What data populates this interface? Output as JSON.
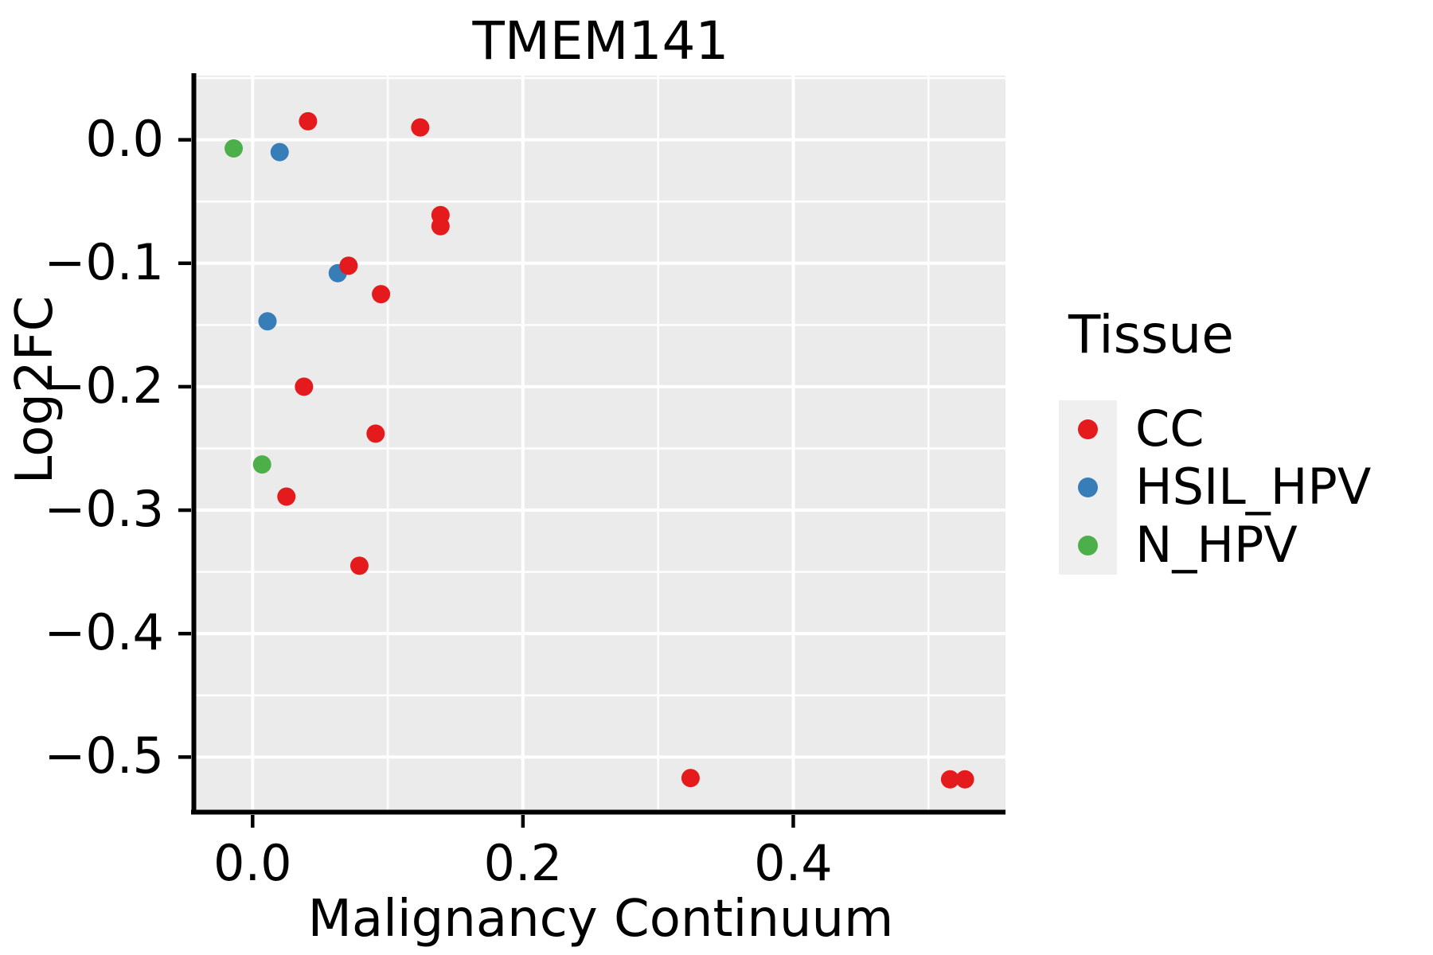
{
  "title": "TMEM141",
  "axes": {
    "x_label": "Malignancy Continuum",
    "y_label": "Log2FC",
    "x_ticks": [
      {
        "value": 0.0,
        "label": "0.0"
      },
      {
        "value": 0.2,
        "label": "0.2"
      },
      {
        "value": 0.4,
        "label": "0.4"
      }
    ],
    "y_ticks": [
      {
        "value": 0.0,
        "label": "0.0"
      },
      {
        "value": -0.1,
        "label": "−0.1"
      },
      {
        "value": -0.2,
        "label": "−0.2"
      },
      {
        "value": -0.3,
        "label": "−0.3"
      },
      {
        "value": -0.4,
        "label": "−0.4"
      },
      {
        "value": -0.5,
        "label": "−0.5"
      }
    ]
  },
  "legend": {
    "title": "Tissue",
    "position": "right"
  },
  "colors": {
    "panel_background": "#EBEBEB",
    "gridline": "#FFFFFF",
    "axis": "#000000",
    "legend_key_background": "#EFEFEF",
    "cc": "#E41A1C",
    "hsil_hpv": "#377EB8",
    "n_hpv": "#4DAF4A"
  },
  "chart_data": {
    "type": "scatter",
    "title": "TMEM141",
    "xlabel": "Malignancy Continuum",
    "ylabel": "Log2FC",
    "xlim": [
      -0.042,
      0.557
    ],
    "ylim": [
      -0.543,
      0.052
    ],
    "grid": true,
    "legend_position": "right",
    "x_minor_gridlines": [
      0.1,
      0.3,
      0.5
    ],
    "y_minor_gridlines": [
      0.05,
      -0.05,
      -0.15,
      -0.25,
      -0.35,
      -0.45
    ],
    "series": [
      {
        "name": "CC",
        "color": "#E41A1C",
        "points": [
          [
            0.041,
            0.015
          ],
          [
            0.124,
            0.01
          ],
          [
            0.139,
            -0.061
          ],
          [
            0.139,
            -0.07
          ],
          [
            0.071,
            -0.102
          ],
          [
            0.095,
            -0.125
          ],
          [
            0.038,
            -0.2
          ],
          [
            0.091,
            -0.238
          ],
          [
            0.025,
            -0.289
          ],
          [
            0.079,
            -0.345
          ],
          [
            0.324,
            -0.517
          ],
          [
            0.516,
            -0.518
          ],
          [
            0.527,
            -0.518
          ]
        ]
      },
      {
        "name": "HSIL_HPV",
        "color": "#377EB8",
        "points": [
          [
            0.02,
            -0.01
          ],
          [
            0.063,
            -0.108
          ],
          [
            0.011,
            -0.147
          ]
        ]
      },
      {
        "name": "N_HPV",
        "color": "#4DAF4A",
        "points": [
          [
            -0.014,
            -0.007
          ],
          [
            0.007,
            -0.263
          ]
        ]
      }
    ]
  }
}
